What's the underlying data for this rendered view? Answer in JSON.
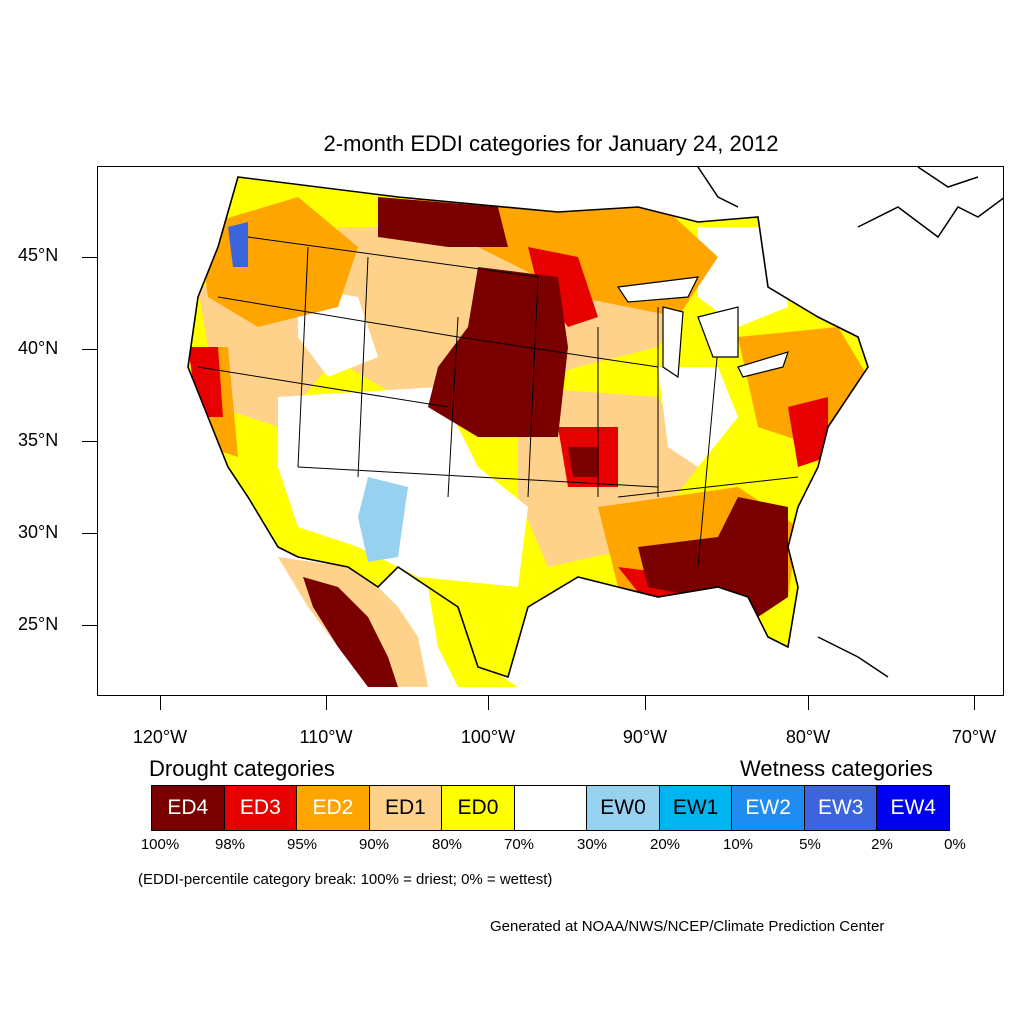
{
  "title": "2-month EDDI categories for January 24, 2012",
  "lat_labels": [
    "45°N",
    "40°N",
    "35°N",
    "30°N",
    "25°N"
  ],
  "lon_labels": [
    "120°W",
    "110°W",
    "100°W",
    "90°W",
    "80°W",
    "70°W"
  ],
  "legend": {
    "drought_heading": "Drought categories",
    "wetness_heading": "Wetness categories",
    "categories": [
      {
        "label": "ED4",
        "color": "#7a0000",
        "text_color": "#ffffff"
      },
      {
        "label": "ED3",
        "color": "#e60000",
        "text_color": "#ffffff"
      },
      {
        "label": "ED2",
        "color": "#ffa500",
        "text_color": "#ffffff"
      },
      {
        "label": "ED1",
        "color": "#ffd28c",
        "text_color": "#000000"
      },
      {
        "label": "ED0",
        "color": "#ffff00",
        "text_color": "#000000"
      },
      {
        "label": "",
        "color": "#ffffff",
        "text_color": "#000000"
      },
      {
        "label": "EW0",
        "color": "#96d2f0",
        "text_color": "#000000"
      },
      {
        "label": "EW1",
        "color": "#00b4f0",
        "text_color": "#000000"
      },
      {
        "label": "EW2",
        "color": "#1e8cf0",
        "text_color": "#ffffff"
      },
      {
        "label": "EW3",
        "color": "#3c64dc",
        "text_color": "#ffffff"
      },
      {
        "label": "EW4",
        "color": "#0000f0",
        "text_color": "#ffffff"
      }
    ],
    "breaks": [
      "100%",
      "98%",
      "95%",
      "90%",
      "80%",
      "70%",
      "30%",
      "20%",
      "10%",
      "5%",
      "2%",
      "0%"
    ]
  },
  "note": "(EDDI-percentile category break: 100% = driest; 0% = wettest)",
  "credit": "Generated at NOAA/NWS/NCEP/Climate Prediction Center"
}
